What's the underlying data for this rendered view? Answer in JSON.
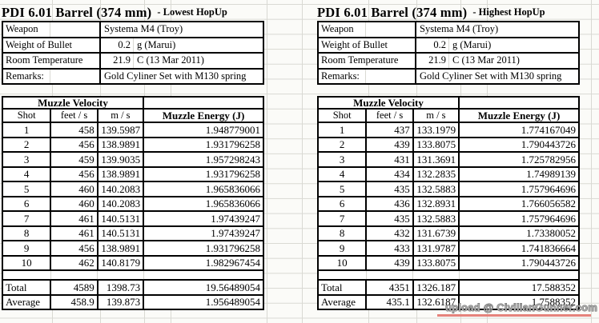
{
  "colors": {
    "table_border": "#000000",
    "gridline": "#d9d9d3",
    "watermark_text": "#ababab",
    "watermark_underline": "#e6837c"
  },
  "watermark": {
    "text": "upload @ CivilianGunner.com"
  },
  "tables": [
    {
      "title": "PDI 6.01 Barrel (374 mm)",
      "subtitle": "- Lowest HopUp",
      "info_rows": [
        {
          "label": "Weapon",
          "num": "",
          "text": "Systema M4 (Troy)"
        },
        {
          "label": "Weight of Bullet",
          "num": "0.2",
          "text": "g (Marui)"
        },
        {
          "label": "Room Temperature",
          "num": "21.9",
          "text": "C (13 Mar 2011)"
        },
        {
          "label": "Remarks:",
          "num": "",
          "text": "Gold Cyliner Set with M130 spring"
        }
      ],
      "velocity_header": "Muzzle Velocity",
      "columns": [
        "Shot",
        "feet / s",
        "m / s",
        "Muzzle Energy (J)"
      ],
      "rows": [
        [
          "1",
          "458",
          "139.5987",
          "1.948779001"
        ],
        [
          "2",
          "456",
          "138.9891",
          "1.931796258"
        ],
        [
          "3",
          "459",
          "139.9035",
          "1.957298243"
        ],
        [
          "4",
          "456",
          "138.9891",
          "1.931796258"
        ],
        [
          "5",
          "460",
          "140.2083",
          "1.965836066"
        ],
        [
          "6",
          "460",
          "140.2083",
          "1.965836066"
        ],
        [
          "7",
          "461",
          "140.5131",
          "1.97439247"
        ],
        [
          "8",
          "461",
          "140.5131",
          "1.97439247"
        ],
        [
          "9",
          "456",
          "138.9891",
          "1.931796258"
        ],
        [
          "10",
          "462",
          "140.8179",
          "1.982967454"
        ]
      ],
      "total": [
        "Total",
        "4589",
        "1398.73",
        "19.56489054"
      ],
      "average": [
        "Average",
        "458.9",
        "139.873",
        "1.956489054"
      ]
    },
    {
      "title": "PDI 6.01 Barrel (374 mm)",
      "subtitle": "- Highest HopUp",
      "info_rows": [
        {
          "label": "Weapon",
          "num": "",
          "text": "Systema M4 (Troy)"
        },
        {
          "label": "Weight of Bullet",
          "num": "0.2",
          "text": "g (Marui)"
        },
        {
          "label": "Room Temperature",
          "num": "21.9",
          "text": "C (13 Mar 2011)"
        },
        {
          "label": "Remarks:",
          "num": "",
          "text": "Gold Cyliner Set with M130 spring"
        }
      ],
      "velocity_header": "Muzzle Velocity",
      "columns": [
        "Shot",
        "feet / s",
        "m / s",
        "Muzzle Energy (J)"
      ],
      "rows": [
        [
          "1",
          "437",
          "133.1979",
          "1.774167049"
        ],
        [
          "2",
          "439",
          "133.8075",
          "1.790443726"
        ],
        [
          "3",
          "431",
          "131.3691",
          "1.725782956"
        ],
        [
          "4",
          "434",
          "132.2835",
          "1.74989139"
        ],
        [
          "5",
          "435",
          "132.5883",
          "1.757964696"
        ],
        [
          "6",
          "436",
          "132.8931",
          "1.766056582"
        ],
        [
          "7",
          "435",
          "132.5883",
          "1.757964696"
        ],
        [
          "8",
          "432",
          "131.6739",
          "1.73380052"
        ],
        [
          "9",
          "433",
          "131.9787",
          "1.741836664"
        ],
        [
          "10",
          "439",
          "133.8075",
          "1.790443726"
        ]
      ],
      "total": [
        "Total",
        "4351",
        "1326.187",
        "17.588352"
      ],
      "average": [
        "Average",
        "435.1",
        "132.6187",
        "1.7588352"
      ]
    }
  ]
}
